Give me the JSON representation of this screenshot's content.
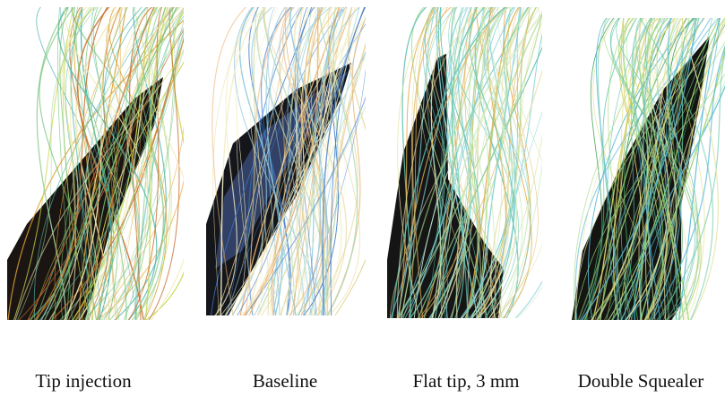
{
  "captions": [
    "Tip injection",
    "Baseline",
    "Flat tip, 3 mm",
    "Double Squealer"
  ]
}
